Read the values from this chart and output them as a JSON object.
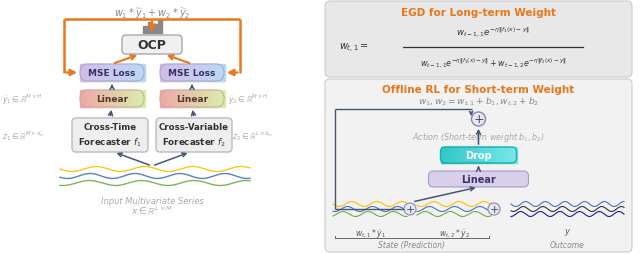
{
  "fig_width": 6.4,
  "fig_height": 2.55,
  "bg_color": "#ffffff",
  "orange": "#E8771A",
  "dark_text": "#333333",
  "gray_text": "#aaaaaa",
  "ocp_label": "OCP",
  "mse_label": "MSE Loss",
  "linear_label": "Linear",
  "drop_label": "Drop",
  "egd_title": "EGD for Long-term Weight",
  "rl_title": "Offline RL for Short-term Weight"
}
